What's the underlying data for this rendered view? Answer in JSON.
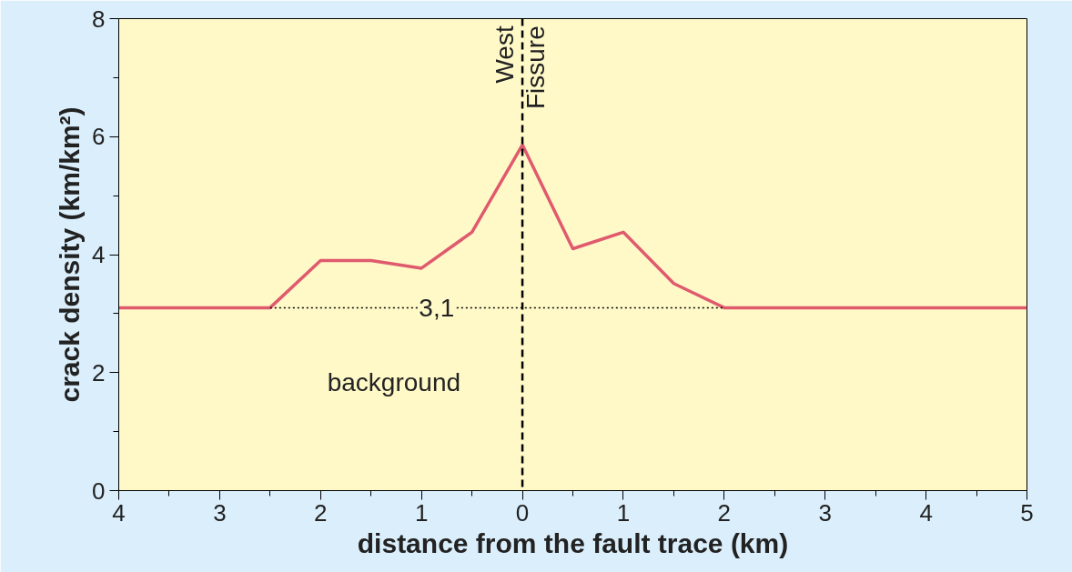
{
  "chart_data": {
    "type": "line",
    "xlabel": "distance from the fault trace (km)",
    "ylabel": "crack density (km/km²)",
    "xlim": [
      -4,
      5
    ],
    "ylim": [
      0,
      8
    ],
    "xticks": [
      {
        "value": -4,
        "label": "4"
      },
      {
        "value": -3.5,
        "label": null
      },
      {
        "value": -3,
        "label": "3"
      },
      {
        "value": -2.5,
        "label": null
      },
      {
        "value": -2,
        "label": "2"
      },
      {
        "value": -1.5,
        "label": null
      },
      {
        "value": -1,
        "label": "1"
      },
      {
        "value": -0.5,
        "label": null
      },
      0,
      {
        "value": 0.5,
        "label": null
      },
      1,
      {
        "value": 1.5,
        "label": null
      },
      2,
      {
        "value": 2.5,
        "label": null
      },
      3,
      {
        "value": 3.5,
        "label": null
      },
      4,
      {
        "value": 4.5,
        "label": null
      },
      5
    ],
    "yticks": [
      0,
      {
        "value": 1,
        "label": null
      },
      2,
      {
        "value": 3,
        "label": null
      },
      4,
      {
        "value": 5,
        "label": null
      },
      6,
      {
        "value": 7,
        "label": null
      },
      8
    ],
    "grid": false,
    "series": [
      {
        "color": "#e05a6e",
        "x": [
          -4,
          -2.5,
          -2,
          -1.5,
          -1,
          -0.5,
          0,
          0.5,
          1,
          1.5,
          2,
          5
        ],
        "values": [
          3.1,
          3.1,
          3.9,
          3.9,
          3.77,
          4.38,
          5.86,
          4.1,
          4.38,
          3.51,
          3.1,
          3.1
        ]
      },
      {
        "color": "#000000",
        "line_style": "dotted",
        "x": [
          -2.5,
          2
        ],
        "values": [
          3.1,
          3.1
        ]
      }
    ],
    "ref_lines": [
      {
        "axis": "x",
        "value": 0,
        "label": "West Fissure",
        "line_style": "dashed",
        "color": "#000000"
      }
    ],
    "annotations": [
      {
        "text": "3,1",
        "x": -0.85,
        "y": 3.1
      },
      "background"
    ]
  }
}
